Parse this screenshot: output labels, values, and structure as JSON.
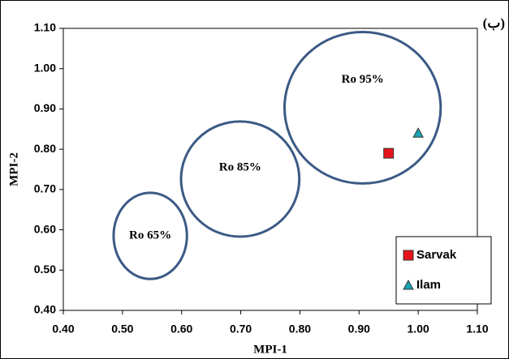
{
  "chart_data": {
    "type": "scatter",
    "panel_label": "(ب)",
    "x_label": "MPI-1",
    "y_label": "MPI-2",
    "xlim": [
      0.4,
      1.1
    ],
    "ylim": [
      0.4,
      1.1
    ],
    "xticks": [
      {
        "value": 0.4,
        "label": "0.40"
      },
      {
        "value": 0.5,
        "label": "0.50"
      },
      {
        "value": 0.6,
        "label": "0.60"
      },
      {
        "value": 0.7,
        "label": "0.70"
      },
      {
        "value": 0.8,
        "label": "0.80"
      },
      {
        "value": 0.9,
        "label": "0.90"
      },
      {
        "value": 1.0,
        "label": "1.00"
      },
      {
        "value": 1.1,
        "label": "1.10"
      }
    ],
    "yticks": [
      {
        "value": 0.4,
        "label": "0.40"
      },
      {
        "value": 0.5,
        "label": "0.50"
      },
      {
        "value": 0.6,
        "label": "0.60"
      },
      {
        "value": 0.7,
        "label": "0.70"
      },
      {
        "value": 0.8,
        "label": "0.80"
      },
      {
        "value": 0.9,
        "label": "0.90"
      },
      {
        "value": 1.0,
        "label": "1.00"
      },
      {
        "value": 1.1,
        "label": "1.10"
      }
    ],
    "series": [
      {
        "name": "Sarvak",
        "color": "#e8141c",
        "marker": "square",
        "x": [
          0.95
        ],
        "values": [
          0.79
        ]
      },
      {
        "name": "Ilam",
        "color": "#1ba3b5",
        "marker": "triangle",
        "x": [
          1.0
        ],
        "values": [
          0.84
        ]
      }
    ],
    "regions": [
      {
        "label": "Ro 65%",
        "cx": 0.547,
        "cy": 0.585,
        "rx": 0.062,
        "ry": 0.107
      },
      {
        "label": "Ro 85%",
        "cx": 0.699,
        "cy": 0.726,
        "rx": 0.1,
        "ry": 0.143
      },
      {
        "label": "Ro 95%",
        "cx": 0.906,
        "cy": 0.903,
        "rx": 0.132,
        "ry": 0.188
      }
    ],
    "region_color": "#3b5a85",
    "legend": "lower right",
    "grid": false
  }
}
